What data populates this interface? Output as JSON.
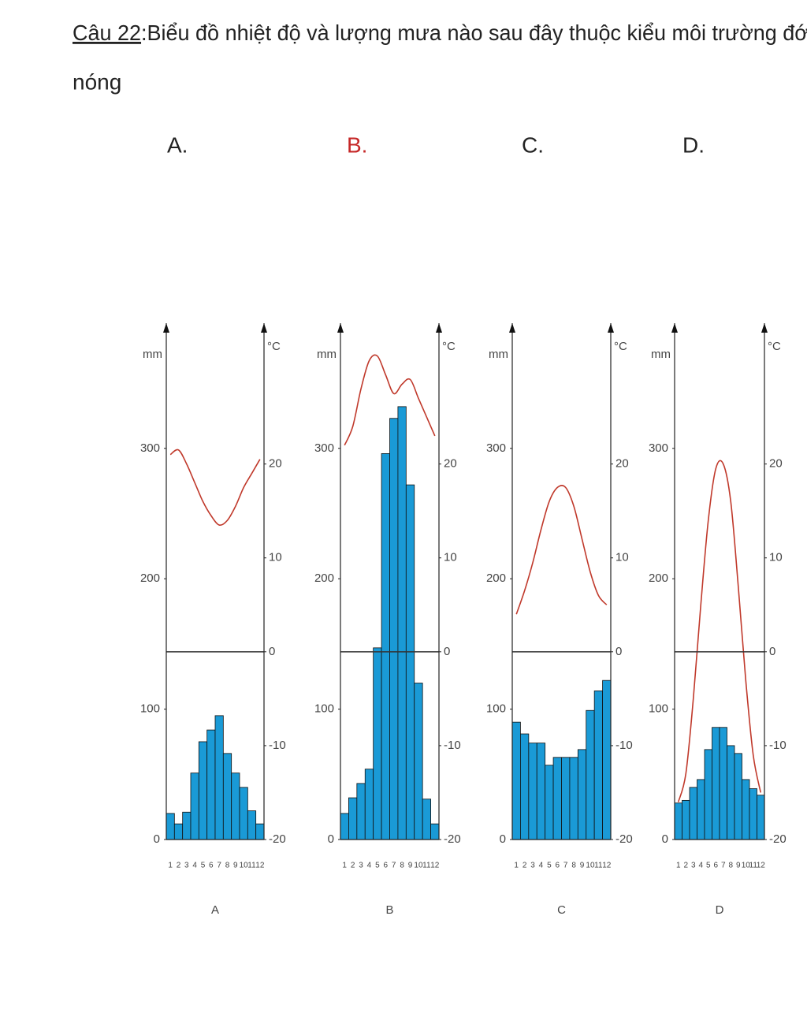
{
  "question": {
    "number": "Câu 22",
    "text": ":Biểu đồ nhiệt độ và lượng mưa nào sau đây thuộc kiểu môi trường đới nóng"
  },
  "options": [
    {
      "label": "A.",
      "color": "#222222"
    },
    {
      "label": "B.",
      "color": "#c62828"
    },
    {
      "label": "C.",
      "color": "#222222"
    },
    {
      "label": "D.",
      "color": "#222222"
    }
  ],
  "chart_data": [
    {
      "type": "bar_line",
      "caption": "A",
      "ylabel": "mm",
      "y2label": "°C",
      "categories": [
        "1",
        "2",
        "3",
        "4",
        "5",
        "6",
        "7",
        "8",
        "9",
        "10",
        "11",
        "12"
      ],
      "ylim": [
        0,
        396
      ],
      "yticks": [
        0,
        100,
        200,
        300
      ],
      "y2lim": [
        -20,
        35
      ],
      "y2ticks": [
        -20,
        -10,
        0,
        10,
        20
      ],
      "series": [
        {
          "color": "#1a9ad6",
          "values": [
            20,
            12,
            21,
            51,
            75,
            84,
            95,
            66,
            51,
            40,
            22,
            12
          ]
        },
        {
          "type": "line",
          "axis": "y2",
          "color": "#c0392b",
          "values": [
            21,
            21.5,
            20,
            18,
            16,
            14.5,
            13.5,
            14,
            15.5,
            17.5,
            19,
            20.5
          ]
        }
      ]
    },
    {
      "type": "bar_line",
      "caption": "B",
      "ylabel": "mm",
      "y2label": "°C",
      "categories": [
        "1",
        "2",
        "3",
        "4",
        "5",
        "6",
        "7",
        "8",
        "9",
        "10",
        "11",
        "12"
      ],
      "ylim": [
        0,
        396
      ],
      "yticks": [
        0,
        100,
        200,
        300
      ],
      "y2lim": [
        -20,
        35
      ],
      "y2ticks": [
        -20,
        -10,
        0,
        10,
        20
      ],
      "series": [
        {
          "color": "#1a9ad6",
          "values": [
            20,
            32,
            43,
            54,
            147,
            296,
            323,
            332,
            272,
            120,
            31,
            12
          ]
        },
        {
          "type": "line",
          "axis": "y2",
          "color": "#c0392b",
          "values": [
            22,
            24,
            28,
            31,
            31.5,
            29.5,
            27.5,
            28.5,
            29,
            27,
            25,
            23
          ]
        }
      ]
    },
    {
      "type": "bar_line",
      "caption": "C",
      "ylabel": "mm",
      "y2label": "°C",
      "categories": [
        "1",
        "2",
        "3",
        "4",
        "5",
        "6",
        "7",
        "8",
        "9",
        "10",
        "11",
        "12"
      ],
      "ylim": [
        0,
        396
      ],
      "yticks": [
        0,
        100,
        200,
        300
      ],
      "y2lim": [
        -20,
        35
      ],
      "y2ticks": [
        -20,
        -10,
        0,
        10,
        20
      ],
      "series": [
        {
          "color": "#1a9ad6",
          "values": [
            90,
            81,
            74,
            74,
            57,
            63,
            63,
            63,
            69,
            99,
            114,
            122
          ]
        },
        {
          "type": "line",
          "axis": "y2",
          "color": "#c0392b",
          "values": [
            4,
            6.5,
            9.5,
            13,
            16,
            17.5,
            17.5,
            15.5,
            12,
            8.5,
            6,
            5
          ]
        }
      ]
    },
    {
      "type": "bar_line",
      "caption": "D",
      "ylabel": "mm",
      "y2label": "°C",
      "categories": [
        "1",
        "2",
        "3",
        "4",
        "5",
        "6",
        "7",
        "8",
        "9",
        "10",
        "11",
        "12"
      ],
      "ylim": [
        0,
        396
      ],
      "yticks": [
        0,
        100,
        200,
        300
      ],
      "y2lim": [
        -20,
        35
      ],
      "y2ticks": [
        -20,
        -10,
        0,
        10,
        20
      ],
      "series": [
        {
          "color": "#1a9ad6",
          "values": [
            28,
            30,
            40,
            46,
            69,
            86,
            86,
            72,
            66,
            46,
            39,
            34
          ]
        },
        {
          "type": "line",
          "axis": "y2",
          "color": "#c0392b",
          "values": [
            -16,
            -13,
            -5,
            5,
            14,
            19.5,
            20,
            16,
            7,
            -3,
            -11,
            -15
          ]
        }
      ]
    }
  ]
}
